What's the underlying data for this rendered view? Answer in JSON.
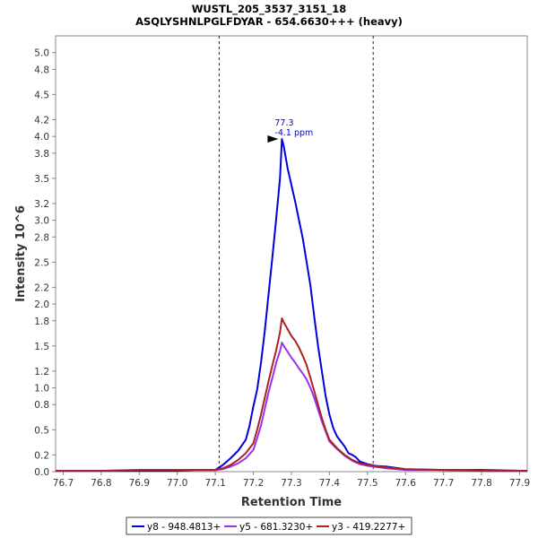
{
  "chart_data": {
    "type": "line",
    "title": "WUSTL_205_3537_3151_18",
    "subtitle": "ASQLYSHNLPGLFDYAR - 654.6630+++ (heavy)",
    "xlabel": "Retention Time",
    "ylabel": "Intensity 10^6",
    "xlim": [
      76.68,
      77.92
    ],
    "ylim": [
      0,
      5.2
    ],
    "xticks": [
      "76.7",
      "76.8",
      "76.9",
      "77.0",
      "77.1",
      "77.2",
      "77.3",
      "77.4",
      "77.5",
      "77.6",
      "77.7",
      "77.8",
      "77.9"
    ],
    "yticks": [
      "0.0",
      "0.2",
      "0.5",
      "0.8",
      "1.0",
      "1.2",
      "1.5",
      "1.8",
      "2.0",
      "2.2",
      "2.5",
      "2.8",
      "3.0",
      "3.2",
      "3.5",
      "3.8",
      "4.0",
      "4.2",
      "4.5",
      "4.8",
      "5.0"
    ],
    "integration_bounds": [
      77.11,
      77.515
    ],
    "peak_annotation": {
      "x": 77.275,
      "y": 3.97,
      "line1": "77.3",
      "line2": "-4.1 ppm"
    },
    "legend_position": "bottom",
    "series": [
      {
        "name": "y8 - 948.4813+",
        "color": "#0000dd",
        "points": [
          [
            76.68,
            0.01
          ],
          [
            76.8,
            0.01
          ],
          [
            76.9,
            0.01
          ],
          [
            77.0,
            0.01
          ],
          [
            77.05,
            0.02
          ],
          [
            77.1,
            0.02
          ],
          [
            77.12,
            0.08
          ],
          [
            77.14,
            0.16
          ],
          [
            77.16,
            0.25
          ],
          [
            77.18,
            0.38
          ],
          [
            77.19,
            0.55
          ],
          [
            77.2,
            0.78
          ],
          [
            77.21,
            0.98
          ],
          [
            77.22,
            1.3
          ],
          [
            77.23,
            1.68
          ],
          [
            77.24,
            2.12
          ],
          [
            77.25,
            2.56
          ],
          [
            77.26,
            3.02
          ],
          [
            77.27,
            3.5
          ],
          [
            77.275,
            3.97
          ],
          [
            77.28,
            3.88
          ],
          [
            77.29,
            3.62
          ],
          [
            77.3,
            3.42
          ],
          [
            77.31,
            3.22
          ],
          [
            77.32,
            3.0
          ],
          [
            77.33,
            2.78
          ],
          [
            77.34,
            2.5
          ],
          [
            77.35,
            2.22
          ],
          [
            77.36,
            1.85
          ],
          [
            77.37,
            1.5
          ],
          [
            77.38,
            1.2
          ],
          [
            77.39,
            0.9
          ],
          [
            77.4,
            0.68
          ],
          [
            77.41,
            0.52
          ],
          [
            77.42,
            0.42
          ],
          [
            77.43,
            0.36
          ],
          [
            77.44,
            0.3
          ],
          [
            77.45,
            0.22
          ],
          [
            77.46,
            0.2
          ],
          [
            77.47,
            0.17
          ],
          [
            77.48,
            0.12
          ],
          [
            77.5,
            0.09
          ],
          [
            77.52,
            0.07
          ],
          [
            77.55,
            0.06
          ],
          [
            77.6,
            0.03
          ],
          [
            77.7,
            0.02
          ],
          [
            77.8,
            0.02
          ],
          [
            77.92,
            0.01
          ]
        ]
      },
      {
        "name": "y5 - 681.3230+",
        "color": "#9933ee",
        "points": [
          [
            76.68,
            0.01
          ],
          [
            76.8,
            0.01
          ],
          [
            76.9,
            0.02
          ],
          [
            77.0,
            0.02
          ],
          [
            77.05,
            0.02
          ],
          [
            77.1,
            0.02
          ],
          [
            77.12,
            0.03
          ],
          [
            77.14,
            0.06
          ],
          [
            77.16,
            0.1
          ],
          [
            77.18,
            0.16
          ],
          [
            77.2,
            0.26
          ],
          [
            77.21,
            0.4
          ],
          [
            77.22,
            0.55
          ],
          [
            77.23,
            0.75
          ],
          [
            77.24,
            0.95
          ],
          [
            77.25,
            1.12
          ],
          [
            77.26,
            1.3
          ],
          [
            77.27,
            1.44
          ],
          [
            77.275,
            1.54
          ],
          [
            77.28,
            1.5
          ],
          [
            77.29,
            1.43
          ],
          [
            77.3,
            1.36
          ],
          [
            77.31,
            1.3
          ],
          [
            77.32,
            1.23
          ],
          [
            77.33,
            1.17
          ],
          [
            77.34,
            1.1
          ],
          [
            77.35,
            1.0
          ],
          [
            77.36,
            0.88
          ],
          [
            77.37,
            0.74
          ],
          [
            77.38,
            0.6
          ],
          [
            77.39,
            0.48
          ],
          [
            77.4,
            0.36
          ],
          [
            77.42,
            0.27
          ],
          [
            77.44,
            0.19
          ],
          [
            77.46,
            0.13
          ],
          [
            77.48,
            0.09
          ],
          [
            77.5,
            0.07
          ],
          [
            77.55,
            0.04
          ],
          [
            77.6,
            0.02
          ],
          [
            77.7,
            0.02
          ],
          [
            77.8,
            0.01
          ],
          [
            77.92,
            0.01
          ]
        ]
      },
      {
        "name": "y3 - 419.2277+",
        "color": "#aa2222",
        "points": [
          [
            76.68,
            0.01
          ],
          [
            76.8,
            0.01
          ],
          [
            76.9,
            0.02
          ],
          [
            77.0,
            0.02
          ],
          [
            77.05,
            0.02
          ],
          [
            77.1,
            0.02
          ],
          [
            77.12,
            0.04
          ],
          [
            77.14,
            0.08
          ],
          [
            77.16,
            0.14
          ],
          [
            77.18,
            0.22
          ],
          [
            77.2,
            0.34
          ],
          [
            77.21,
            0.5
          ],
          [
            77.22,
            0.68
          ],
          [
            77.23,
            0.88
          ],
          [
            77.24,
            1.08
          ],
          [
            77.25,
            1.27
          ],
          [
            77.26,
            1.45
          ],
          [
            77.27,
            1.66
          ],
          [
            77.275,
            1.83
          ],
          [
            77.28,
            1.78
          ],
          [
            77.29,
            1.7
          ],
          [
            77.3,
            1.62
          ],
          [
            77.31,
            1.56
          ],
          [
            77.32,
            1.48
          ],
          [
            77.33,
            1.38
          ],
          [
            77.34,
            1.27
          ],
          [
            77.35,
            1.12
          ],
          [
            77.36,
            0.96
          ],
          [
            77.37,
            0.8
          ],
          [
            77.38,
            0.64
          ],
          [
            77.39,
            0.5
          ],
          [
            77.4,
            0.38
          ],
          [
            77.42,
            0.28
          ],
          [
            77.44,
            0.2
          ],
          [
            77.46,
            0.14
          ],
          [
            77.48,
            0.1
          ],
          [
            77.5,
            0.08
          ],
          [
            77.55,
            0.05
          ],
          [
            77.6,
            0.03
          ],
          [
            77.7,
            0.02
          ],
          [
            77.8,
            0.01
          ],
          [
            77.92,
            0.01
          ]
        ]
      }
    ]
  }
}
